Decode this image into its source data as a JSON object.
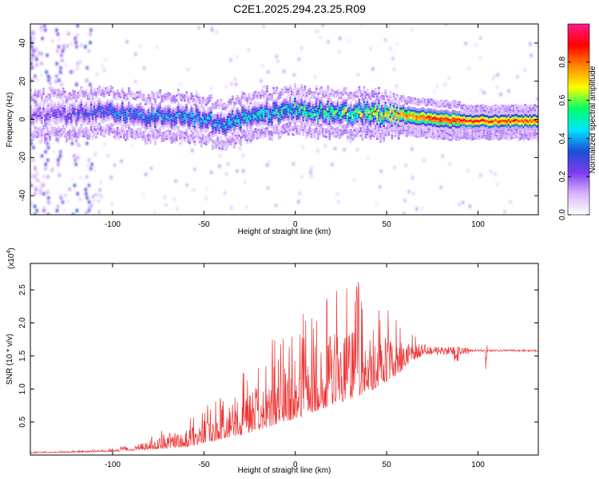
{
  "title": "C2E1.2025.294.23.25.R09",
  "chart_data": [
    {
      "type": "heatmap",
      "name": "spectrogram",
      "xlabel": "Height of straight line (km)",
      "ylabel": "Frequency (Hz)",
      "xlim": [
        -145,
        133
      ],
      "ylim": [
        -50,
        50
      ],
      "xticks": [
        -100,
        -50,
        0,
        50,
        100
      ],
      "xtick_labels": [
        "-100",
        "-50",
        "0",
        "50",
        "100"
      ],
      "yticks": [
        -40,
        -20,
        0,
        20,
        40
      ],
      "ytick_labels": [
        "-40",
        "-20",
        "0",
        "20",
        "40"
      ],
      "colorbar": {
        "label": "Normalized spectral amplitude",
        "range": [
          0.0,
          1.0
        ],
        "ticks": [
          0.0,
          0.2,
          0.4,
          0.6,
          0.8
        ],
        "tick_labels": [
          "0.0",
          "0.2",
          "0.4",
          "0.6",
          "0.8"
        ],
        "colormap": [
          "#ffffff",
          "#d8b4fe",
          "#7c3aed",
          "#1d4ed8",
          "#00e5ff",
          "#00ff66",
          "#ffff00",
          "#ff8800",
          "#ff0000",
          "#ff1a8c"
        ]
      },
      "band_center_hz": [
        [
          -140,
          2
        ],
        [
          -120,
          3
        ],
        [
          -100,
          4
        ],
        [
          -80,
          1
        ],
        [
          -60,
          2
        ],
        [
          -40,
          -2
        ],
        [
          -20,
          3
        ],
        [
          0,
          5
        ],
        [
          20,
          4
        ],
        [
          40,
          3
        ],
        [
          60,
          2
        ],
        [
          80,
          0
        ],
        [
          100,
          -1
        ],
        [
          133,
          -1
        ]
      ],
      "band_peak_amplitude": [
        [
          -140,
          0.2
        ],
        [
          -100,
          0.35
        ],
        [
          -50,
          0.4
        ],
        [
          0,
          0.5
        ],
        [
          30,
          0.6
        ],
        [
          60,
          0.8
        ],
        [
          80,
          0.9
        ],
        [
          133,
          0.85
        ]
      ]
    },
    {
      "type": "line",
      "name": "snr",
      "xlabel": "Height of straight line (km)",
      "ylabel": "SNR (10 * v/v)",
      "yscale_label": "(x10",
      "yscale_exp": "4",
      "xlim": [
        -145,
        133
      ],
      "ylim": [
        0,
        2.9
      ],
      "xticks": [
        -100,
        -50,
        0,
        50,
        100
      ],
      "xtick_labels": [
        "-100",
        "-50",
        "0",
        "50",
        "100"
      ],
      "yticks": [
        0.5,
        1.0,
        1.5,
        2.0,
        2.5
      ],
      "ytick_labels": [
        "0.5",
        "1.0",
        "1.5",
        "2.0",
        "2.5"
      ],
      "color": "#ee3333",
      "envelope": [
        [
          -145,
          0.05
        ],
        [
          -110,
          0.08
        ],
        [
          -90,
          0.2
        ],
        [
          -75,
          0.35
        ],
        [
          -60,
          0.5
        ],
        [
          -50,
          0.75
        ],
        [
          -40,
          0.95
        ],
        [
          -25,
          1.35
        ],
        [
          -10,
          1.85
        ],
        [
          0,
          2.15
        ],
        [
          10,
          2.35
        ],
        [
          20,
          2.55
        ],
        [
          30,
          2.7
        ],
        [
          40,
          2.7
        ],
        [
          50,
          2.35
        ],
        [
          60,
          1.95
        ],
        [
          70,
          1.7
        ],
        [
          80,
          1.65
        ],
        [
          90,
          1.6
        ],
        [
          100,
          1.6
        ],
        [
          133,
          1.58
        ]
      ],
      "baseline": [
        [
          -145,
          0.03
        ],
        [
          -100,
          0.05
        ],
        [
          -60,
          0.12
        ],
        [
          -30,
          0.3
        ],
        [
          0,
          0.55
        ],
        [
          20,
          0.75
        ],
        [
          40,
          0.95
        ],
        [
          55,
          1.2
        ],
        [
          65,
          1.45
        ],
        [
          75,
          1.55
        ],
        [
          90,
          1.57
        ],
        [
          133,
          1.57
        ]
      ]
    }
  ]
}
